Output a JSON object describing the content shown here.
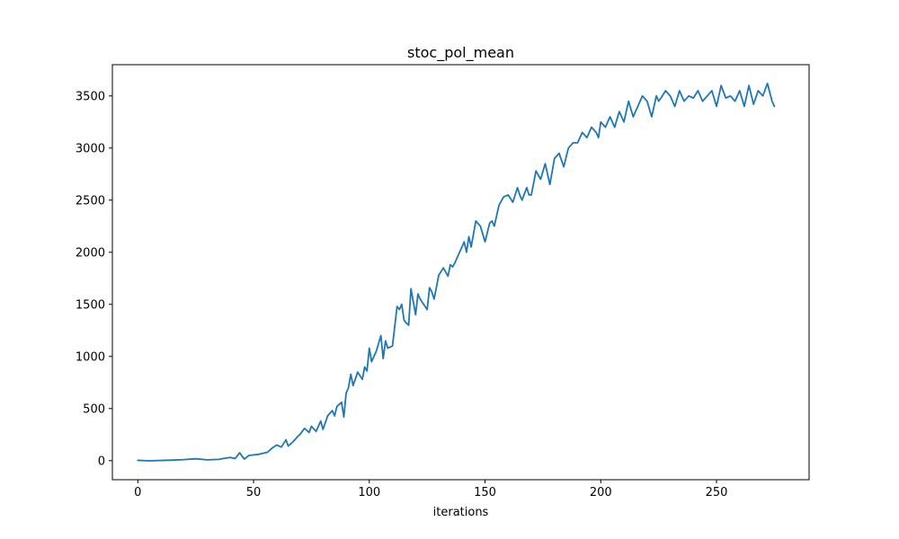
{
  "chart_data": {
    "type": "line",
    "title": "stoc_pol_mean",
    "xlabel": "iterations",
    "ylabel": "",
    "xlim": [
      -11,
      290
    ],
    "ylim": [
      -183,
      3800
    ],
    "xticks": [
      0,
      50,
      100,
      150,
      200,
      250
    ],
    "yticks": [
      0,
      500,
      1000,
      1500,
      2000,
      2500,
      3000,
      3500
    ],
    "grid": false,
    "legend": "none",
    "series": [
      {
        "color": "#1f77b4",
        "x": [
          0,
          5,
          10,
          15,
          20,
          25,
          30,
          35,
          38,
          40,
          42,
          44,
          46,
          48,
          50,
          52,
          54,
          56,
          58,
          60,
          62,
          64,
          65,
          67,
          69,
          70,
          72,
          74,
          75,
          77,
          79,
          80,
          82,
          84,
          85,
          86,
          88,
          89,
          90,
          91,
          92,
          93,
          95,
          97,
          98,
          99,
          100,
          101,
          102,
          103,
          105,
          106,
          107,
          108,
          110,
          112,
          113,
          114,
          115,
          116,
          117,
          118,
          120,
          121,
          122,
          125,
          126,
          127,
          128,
          130,
          132,
          134,
          135,
          136,
          137,
          140,
          141,
          142,
          143,
          144,
          146,
          148,
          150,
          152,
          153,
          154,
          156,
          158,
          160,
          162,
          164,
          165,
          166,
          168,
          169,
          170,
          172,
          174,
          176,
          178,
          180,
          182,
          184,
          186,
          188,
          190,
          192,
          194,
          196,
          198,
          199,
          200,
          202,
          204,
          206,
          208,
          210,
          212,
          214,
          216,
          218,
          220,
          222,
          224,
          225,
          226,
          228,
          230,
          232,
          234,
          236,
          238,
          240,
          242,
          244,
          246,
          248,
          250,
          252,
          254,
          256,
          258,
          260,
          262,
          264,
          266,
          268,
          270,
          272,
          274,
          275
        ],
        "y": [
          3,
          -2,
          2,
          5,
          10,
          18,
          8,
          12,
          25,
          30,
          20,
          75,
          15,
          50,
          55,
          60,
          70,
          80,
          120,
          150,
          130,
          200,
          140,
          180,
          230,
          250,
          310,
          270,
          330,
          280,
          380,
          300,
          430,
          480,
          430,
          520,
          560,
          420,
          650,
          700,
          830,
          720,
          850,
          780,
          900,
          860,
          1080,
          950,
          1000,
          1050,
          1200,
          980,
          1150,
          1080,
          1100,
          1480,
          1450,
          1500,
          1350,
          1320,
          1300,
          1650,
          1400,
          1600,
          1550,
          1450,
          1660,
          1620,
          1550,
          1780,
          1850,
          1770,
          1880,
          1860,
          1900,
          2050,
          2100,
          2000,
          2150,
          2050,
          2300,
          2250,
          2100,
          2280,
          2300,
          2250,
          2450,
          2530,
          2550,
          2480,
          2620,
          2550,
          2500,
          2620,
          2550,
          2550,
          2780,
          2700,
          2850,
          2650,
          2900,
          2950,
          2820,
          3000,
          3050,
          3050,
          3150,
          3100,
          3200,
          3150,
          3100,
          3250,
          3200,
          3300,
          3200,
          3350,
          3250,
          3450,
          3300,
          3400,
          3500,
          3450,
          3300,
          3500,
          3450,
          3480,
          3550,
          3500,
          3400,
          3550,
          3450,
          3500,
          3480,
          3550,
          3450,
          3500,
          3550,
          3400,
          3600,
          3480,
          3500,
          3450,
          3550,
          3400,
          3600,
          3420,
          3550,
          3500,
          3620,
          3450,
          3400
        ]
      }
    ]
  }
}
